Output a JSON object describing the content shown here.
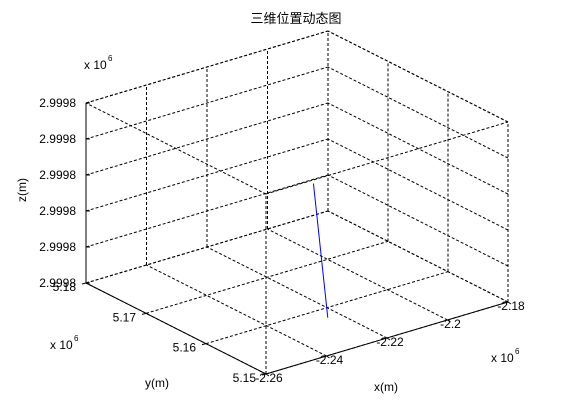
{
  "chart_data": {
    "type": "line3d",
    "title": "三维位置动态图",
    "xlabel": "x(m)",
    "ylabel": "y(m)",
    "zlabel": "z(m)",
    "x_exponent": "x 10",
    "x_exponent_power": "6",
    "y_exponent": "x 10",
    "y_exponent_power": "6",
    "z_exponent": "x 10",
    "z_exponent_power": "6",
    "xlim": [
      -2.26,
      -2.18
    ],
    "ylim": [
      5.15,
      5.18
    ],
    "zlim": [
      0,
      5
    ],
    "xticks": [
      -2.26,
      -2.24,
      -2.22,
      -2.2,
      -2.18
    ],
    "xtick_labels": [
      "-2.26",
      "-2.24",
      "-2.22",
      "-2.2",
      "-2.18"
    ],
    "yticks": [
      5.15,
      5.16,
      5.17,
      5.18
    ],
    "ytick_labels": [
      "5.15",
      "5.16",
      "5.17",
      "5.18"
    ],
    "zticks": [
      0,
      1,
      2,
      3,
      4,
      5
    ],
    "ztick_labels": [
      "2.9998",
      "2.9998",
      "2.9998",
      "2.9998",
      "2.9998",
      "2.9998"
    ],
    "grid": true,
    "box": true,
    "series": [
      {
        "color": "#0000ff",
        "points": [
          {
            "x": -2.2247,
            "y": 5.1575,
            "z": 0.05
          },
          {
            "x": -2.2221,
            "y": 5.1612,
            "z": 3.4
          }
        ]
      }
    ]
  }
}
